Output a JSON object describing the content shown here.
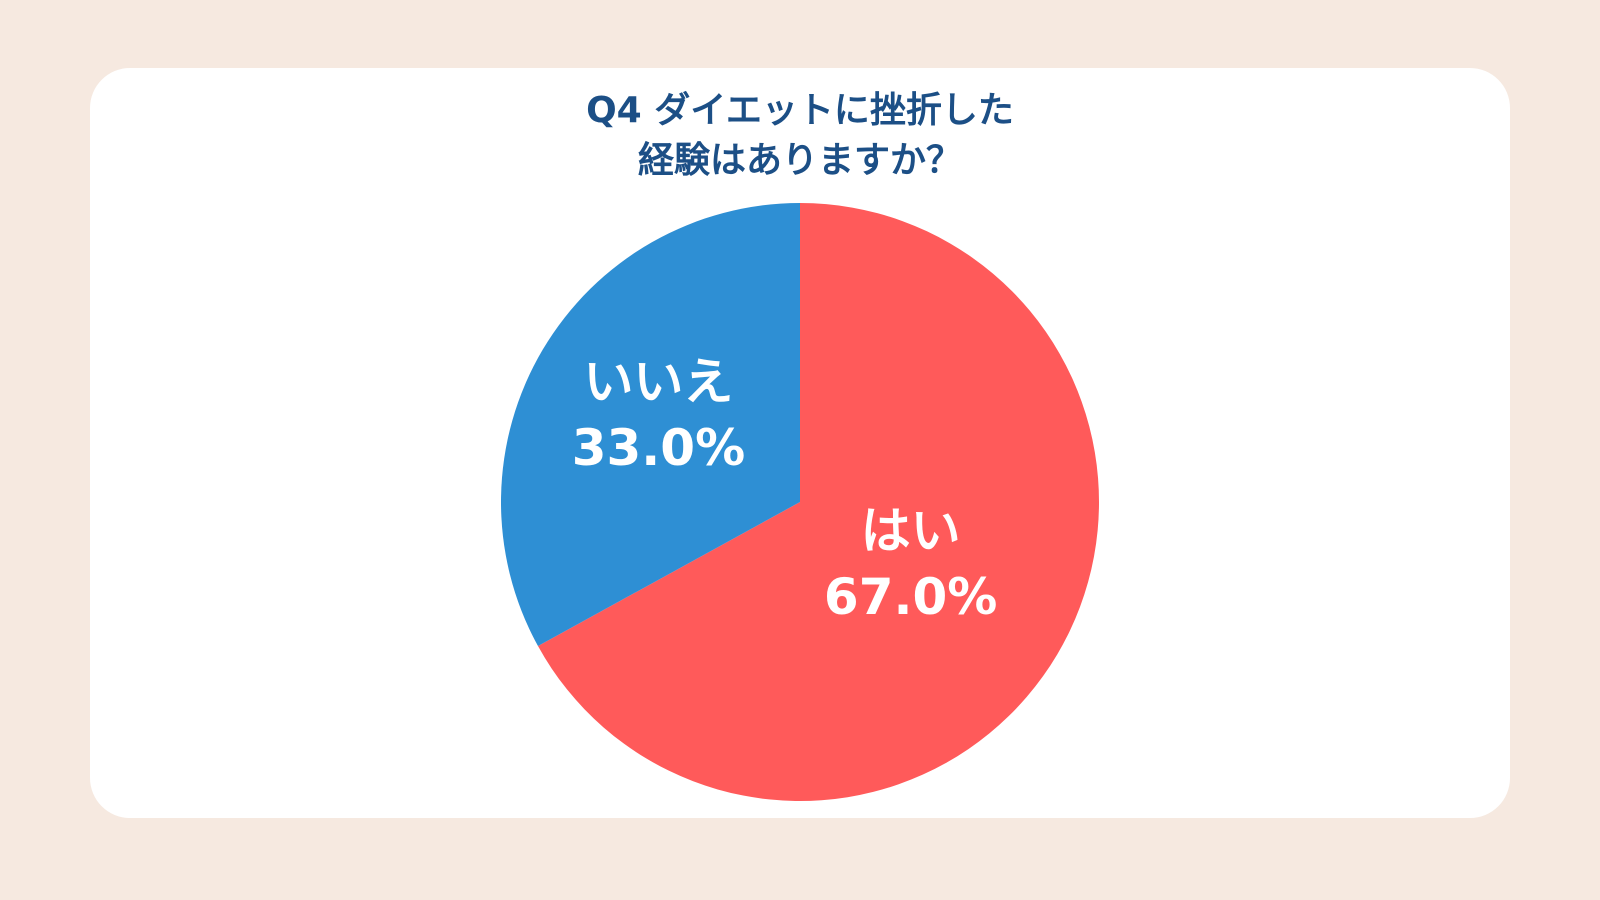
{
  "chart_data": {
    "type": "pie",
    "title": [
      "Q4 ダイエットに挫折した",
      "経験はありますか？"
    ],
    "categories": [
      "はい",
      "いいえ"
    ],
    "values": [
      67.0,
      33.0
    ],
    "value_labels": [
      "67.0%",
      "33.0%"
    ],
    "colors": [
      "#ff5a5a",
      "#2e8fd4"
    ]
  }
}
